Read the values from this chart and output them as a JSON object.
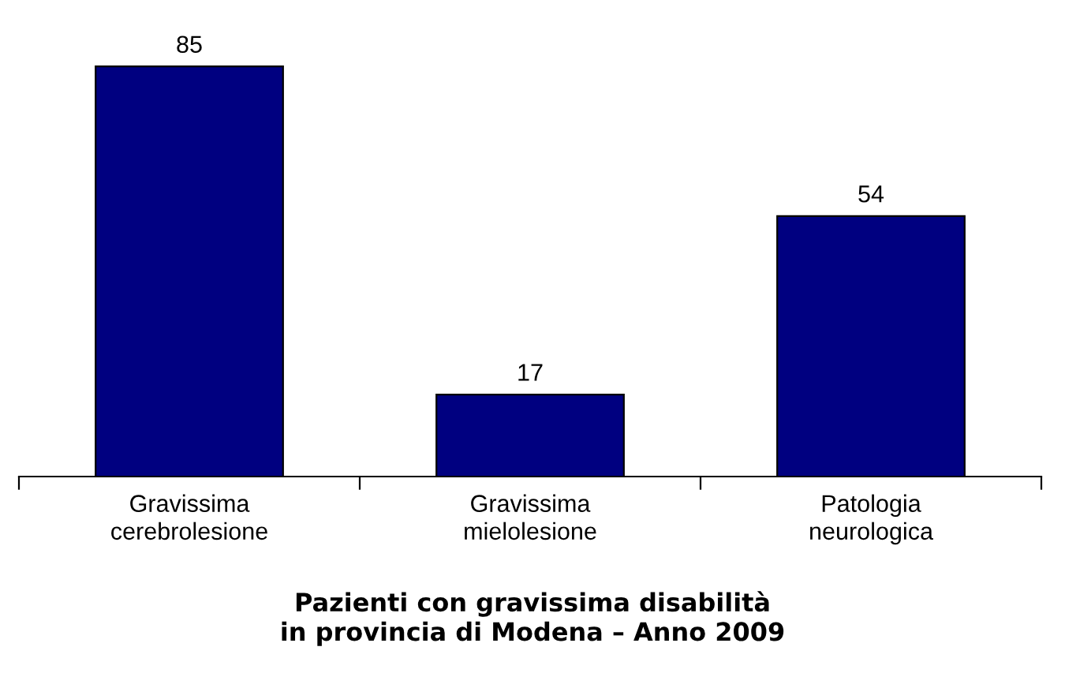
{
  "chart_data": {
    "type": "bar",
    "title": "Pazienti con gravissima disabilità\nin provincia di Modena – Anno 2009",
    "categories": [
      "Gravissima\ncerebrolesione",
      "Gravissima\nmielolesione",
      "Patologia\nneurologica"
    ],
    "values": [
      85,
      17,
      54
    ],
    "color": "#000080",
    "data_labels": true,
    "grid": false,
    "legend": false
  }
}
